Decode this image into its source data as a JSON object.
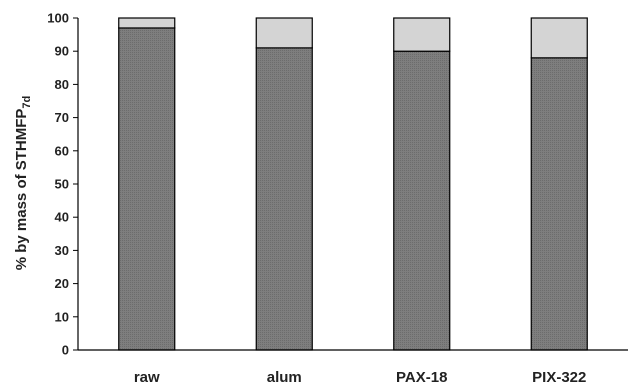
{
  "chart_data": {
    "type": "bar",
    "stacked": true,
    "categories": [
      "raw",
      "alum",
      "PAX-18",
      "PIX-322"
    ],
    "series": [
      {
        "values": [
          97,
          91,
          90,
          88
        ],
        "color": "#7a7a7a"
      },
      {
        "values": [
          3,
          9,
          10,
          12
        ],
        "color": "#d4d4d4"
      }
    ],
    "ylabel": "% by mass of STHMFP",
    "ylabel_subscript": "7d",
    "ylim": [
      0,
      100
    ],
    "yticks": [
      0,
      10,
      20,
      30,
      40,
      50,
      60,
      70,
      80,
      90,
      100
    ],
    "grid": false,
    "legend": "none"
  }
}
